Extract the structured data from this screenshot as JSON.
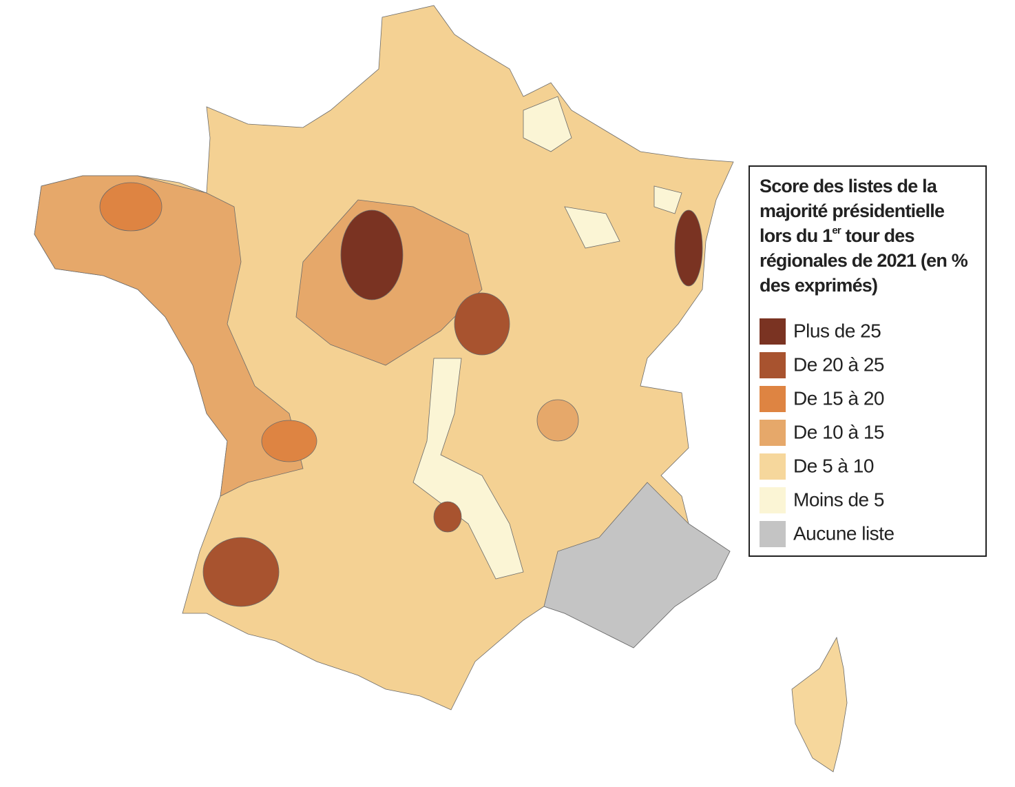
{
  "legend": {
    "title": {
      "before": "Score des listes de la majorité présidentielle lors du 1",
      "superscript": "er",
      "after": " tour des régionales de 2021 (en % des exprimés)"
    },
    "items": [
      {
        "label": "Plus de 25",
        "color": "#7a3322"
      },
      {
        "label": "De 20 à 25",
        "color": "#a8532f"
      },
      {
        "label": "De 15 à 20",
        "color": "#de8442"
      },
      {
        "label": "De 10 à 15",
        "color": "#e6a86a"
      },
      {
        "label": "De 5 à 10",
        "color": "#f6d79c"
      },
      {
        "label": "Moins de 5",
        "color": "#fbf5d5"
      },
      {
        "label": "Aucune liste",
        "color": "#c4c4c4"
      }
    ]
  }
}
